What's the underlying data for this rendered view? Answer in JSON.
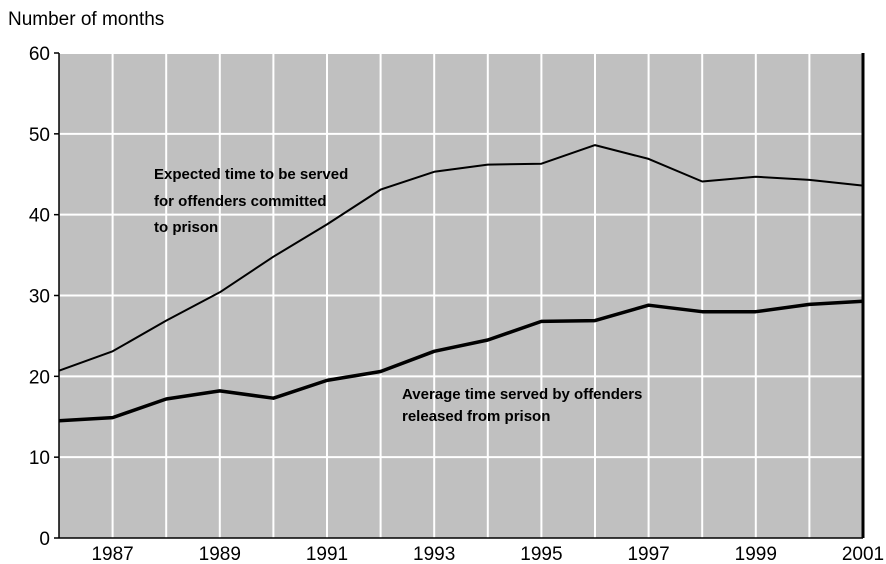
{
  "chart_data": {
    "type": "line",
    "title": "",
    "xlabel": "",
    "ylabel": "Number of months",
    "x": [
      1986,
      1987,
      1988,
      1989,
      1990,
      1991,
      1992,
      1993,
      1994,
      1995,
      1996,
      1997,
      1998,
      1999,
      2000,
      2001
    ],
    "xlim": [
      1986,
      2001
    ],
    "ylim": [
      0,
      60
    ],
    "xticks": [
      "1987",
      "1989",
      "1991",
      "1993",
      "1995",
      "1997",
      "1999",
      "2001"
    ],
    "yticks": [
      "0",
      "10",
      "20",
      "30",
      "40",
      "50",
      "60"
    ],
    "grid": true,
    "legend": "none",
    "series": [
      {
        "values": [
          20.7,
          23.1,
          26.9,
          30.4,
          34.8,
          38.8,
          43.1,
          45.3,
          46.2,
          46.3,
          48.6,
          46.9,
          44.1,
          44.7,
          44.3,
          43.6
        ],
        "color": "#000000",
        "annotation": [
          "Expected time to be served",
          "for offenders committed",
          "to prison"
        ]
      },
      {
        "values": [
          14.5,
          14.9,
          17.2,
          18.2,
          17.3,
          19.5,
          20.6,
          23.1,
          24.5,
          26.8,
          26.9,
          28.8,
          28.0,
          28.0,
          28.9,
          29.3
        ],
        "color": "#000000",
        "annotation": [
          "Average time served by offenders",
          "released from prison"
        ]
      }
    ],
    "colors": {
      "plot_background": "#c0c0c0",
      "gridline": "#ffffff",
      "line": "#000000"
    }
  }
}
